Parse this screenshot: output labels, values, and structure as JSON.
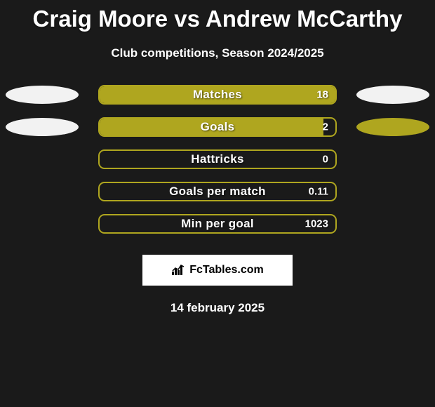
{
  "title": "Craig Moore vs Andrew McCarthy",
  "subtitle": "Club competitions, Season 2024/2025",
  "date": "14 february 2025",
  "logo_text": "FcTables.com",
  "colors": {
    "background": "#1a1a1a",
    "text": "#ffffff",
    "bar_border": "#afa61f",
    "bar_fill": "#afa61f",
    "ellipse_white": "#f5f5f5",
    "ellipse_olive": "#afa61f",
    "logo_bg": "#ffffff",
    "logo_text": "#000000"
  },
  "rows": [
    {
      "label": "Matches",
      "value": "18",
      "fill_pct": 100,
      "left_ellipse_color": "#f2f2f2",
      "right_ellipse_color": "#f2f2f2",
      "show_ellipses": true
    },
    {
      "label": "Goals",
      "value": "2",
      "fill_pct": 95,
      "left_ellipse_color": "#f2f2f2",
      "right_ellipse_color": "#afa61f",
      "show_ellipses": true
    },
    {
      "label": "Hattricks",
      "value": "0",
      "fill_pct": 0,
      "show_ellipses": false
    },
    {
      "label": "Goals per match",
      "value": "0.11",
      "fill_pct": 0,
      "show_ellipses": false
    },
    {
      "label": "Min per goal",
      "value": "1023",
      "fill_pct": 0,
      "show_ellipses": false
    }
  ]
}
